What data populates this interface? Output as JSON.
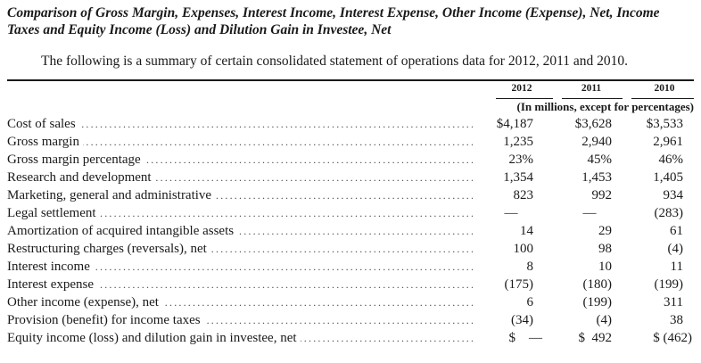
{
  "title": "Comparison of Gross Margin, Expenses, Interest Income, Interest Expense, Other Income (Expense), Net, Income Taxes and Equity Income (Loss) and Dilution Gain in Investee, Net",
  "intro": "The following is a summary of certain consolidated statement of operations data for 2012, 2011 and 2010.",
  "table": {
    "years": [
      "2012",
      "2011",
      "2010"
    ],
    "units": "(In millions, except for percentages)",
    "rows": [
      {
        "label": "Cost of sales",
        "v2012": "$4,187",
        "v2011": "$3,628",
        "v2010": "$3,533"
      },
      {
        "label": "Gross margin",
        "v2012": "1,235",
        "v2011": "2,940",
        "v2010": "2,961"
      },
      {
        "label": "Gross margin percentage",
        "v2012": "23%",
        "v2011": "45%",
        "v2010": "46%"
      },
      {
        "label": "Research and development",
        "v2012": "1,354",
        "v2011": "1,453",
        "v2010": "1,405"
      },
      {
        "label": "Marketing, general and administrative",
        "v2012": "823",
        "v2011": "992",
        "v2010": "934"
      },
      {
        "label": "Legal settlement",
        "v2012": "—",
        "v2011": "—",
        "v2010": "(283)"
      },
      {
        "label": "Amortization of acquired intangible assets",
        "v2012": "14",
        "v2011": "29",
        "v2010": "61"
      },
      {
        "label": "Restructuring charges (reversals), net",
        "v2012": "100",
        "v2011": "98",
        "v2010": "(4)"
      },
      {
        "label": "Interest income",
        "v2012": "8",
        "v2011": "10",
        "v2010": "11"
      },
      {
        "label": "Interest expense",
        "v2012": "(175)",
        "v2011": "(180)",
        "v2010": "(199)"
      },
      {
        "label": "Other income (expense), net",
        "v2012": "6",
        "v2011": "(199)",
        "v2010": "311"
      },
      {
        "label": "Provision (benefit) for income taxes",
        "v2012": "(34)",
        "v2011": "(4)",
        "v2010": "38"
      },
      {
        "label": "Equity income (loss) and dilution gain in investee, net",
        "v2012": "$    —",
        "v2011": "$  492",
        "v2010": "$ (462)"
      }
    ]
  }
}
